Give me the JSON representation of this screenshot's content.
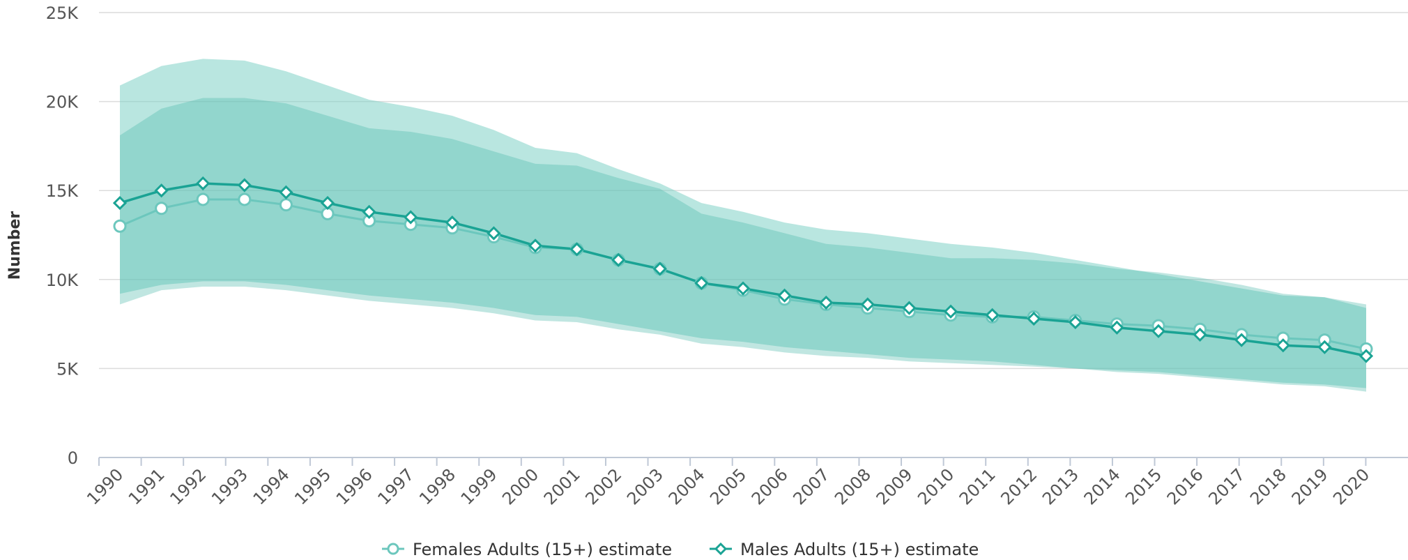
{
  "chart_data": {
    "type": "line",
    "title": "",
    "ylabel": "Number",
    "xlabel": "",
    "ylim": [
      0,
      25000
    ],
    "yticks": [
      0,
      5000,
      10000,
      15000,
      20000,
      25000
    ],
    "ytick_labels": [
      "0",
      "5K",
      "10K",
      "15K",
      "20K",
      "25K"
    ],
    "x": [
      "1990",
      "1991",
      "1992",
      "1993",
      "1994",
      "1995",
      "1996",
      "1997",
      "1998",
      "1999",
      "2000",
      "2001",
      "2002",
      "2003",
      "2004",
      "2005",
      "2006",
      "2007",
      "2008",
      "2009",
      "2010",
      "2011",
      "2012",
      "2013",
      "2014",
      "2015",
      "2016",
      "2017",
      "2018",
      "2019",
      "2020"
    ],
    "grid": true,
    "legend_position": "bottom-center",
    "series": [
      {
        "name": "Females Adults (15+) estimate",
        "color": "#6cc7bd",
        "marker": "circle",
        "values": [
          13000,
          14000,
          14500,
          14500,
          14200,
          13700,
          13300,
          13100,
          12900,
          12400,
          11800,
          11700,
          11100,
          10600,
          9800,
          9400,
          8900,
          8600,
          8400,
          8200,
          8000,
          7900,
          7900,
          7700,
          7500,
          7400,
          7200,
          6900,
          6700,
          6600,
          6100
        ],
        "upper": [
          20900,
          22000,
          22400,
          22300,
          21700,
          20900,
          20100,
          19700,
          19200,
          18400,
          17400,
          17100,
          16200,
          15400,
          14300,
          13800,
          13200,
          12800,
          12600,
          12300,
          12000,
          11800,
          11500,
          11100,
          10700,
          10300,
          9900,
          9500,
          9100,
          9000,
          8400
        ],
        "lower": [
          9200,
          9700,
          9900,
          9900,
          9700,
          9400,
          9100,
          8900,
          8700,
          8400,
          8000,
          7900,
          7500,
          7100,
          6700,
          6500,
          6200,
          6000,
          5800,
          5600,
          5500,
          5400,
          5200,
          5000,
          4900,
          4800,
          4600,
          4400,
          4200,
          4100,
          3900
        ]
      },
      {
        "name": "Males Adults (15+) estimate",
        "color": "#1aa394",
        "marker": "diamond",
        "values": [
          14300,
          15000,
          15400,
          15300,
          14900,
          14300,
          13800,
          13500,
          13200,
          12600,
          11900,
          11700,
          11100,
          10600,
          9800,
          9500,
          9100,
          8700,
          8600,
          8400,
          8200,
          8000,
          7800,
          7600,
          7300,
          7100,
          6900,
          6600,
          6300,
          6200,
          5700
        ],
        "upper": [
          18100,
          19600,
          20200,
          20200,
          19900,
          19200,
          18500,
          18300,
          17900,
          17200,
          16500,
          16400,
          15700,
          15100,
          13700,
          13200,
          12600,
          12000,
          11800,
          11500,
          11200,
          11200,
          11100,
          10900,
          10600,
          10400,
          10100,
          9700,
          9200,
          9000,
          8600
        ],
        "lower": [
          8600,
          9400,
          9600,
          9600,
          9400,
          9100,
          8800,
          8600,
          8400,
          8100,
          7700,
          7600,
          7200,
          6900,
          6400,
          6200,
          5900,
          5700,
          5600,
          5400,
          5300,
          5200,
          5100,
          5000,
          4800,
          4700,
          4500,
          4300,
          4100,
          4000,
          3700
        ]
      }
    ]
  }
}
